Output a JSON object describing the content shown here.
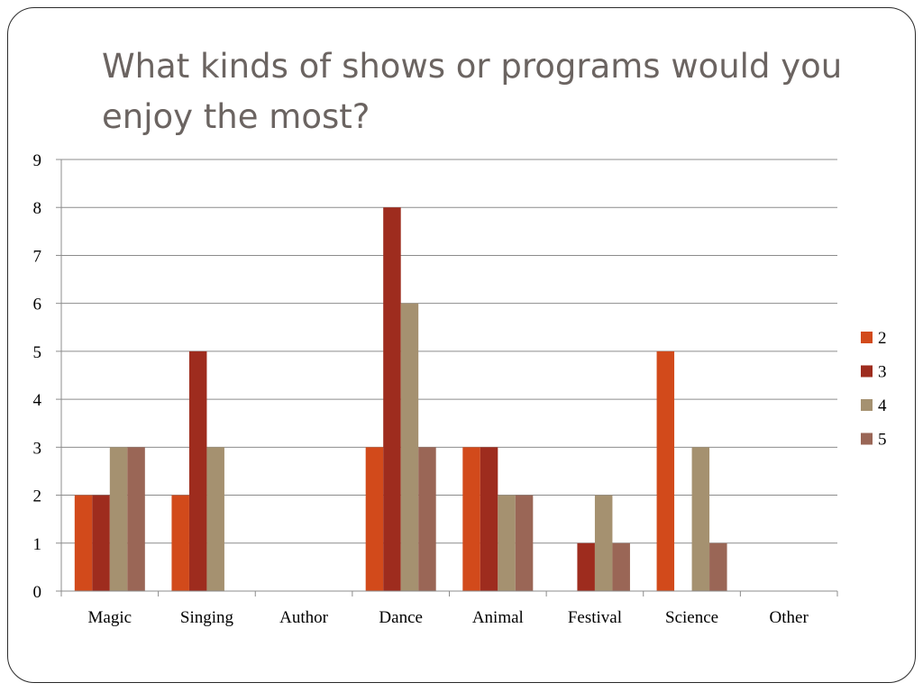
{
  "slide": {
    "title": "What kinds of shows or programs would you enjoy the most?"
  },
  "chart_data": {
    "type": "bar",
    "title": "",
    "xlabel": "",
    "ylabel": "",
    "categories": [
      "Magic",
      "Singing",
      "Author",
      "Dance",
      "Animal",
      "Festival",
      "Science",
      "Other"
    ],
    "ylim": [
      0,
      9
    ],
    "yticks": [
      0,
      1,
      2,
      3,
      4,
      5,
      6,
      7,
      8,
      9
    ],
    "grid": true,
    "legend_position": "right",
    "series": [
      {
        "name": "2",
        "color": "#D24A1B",
        "values": [
          2,
          2,
          0,
          3,
          3,
          0,
          5,
          0
        ]
      },
      {
        "name": "3",
        "color": "#9E2C1E",
        "values": [
          2,
          5,
          0,
          8,
          3,
          1,
          0,
          0
        ]
      },
      {
        "name": "4",
        "color": "#A59170",
        "values": [
          3,
          3,
          0,
          6,
          2,
          2,
          3,
          0
        ]
      },
      {
        "name": "5",
        "color": "#9A6656",
        "values": [
          3,
          0,
          0,
          3,
          2,
          1,
          1,
          0
        ]
      }
    ]
  }
}
